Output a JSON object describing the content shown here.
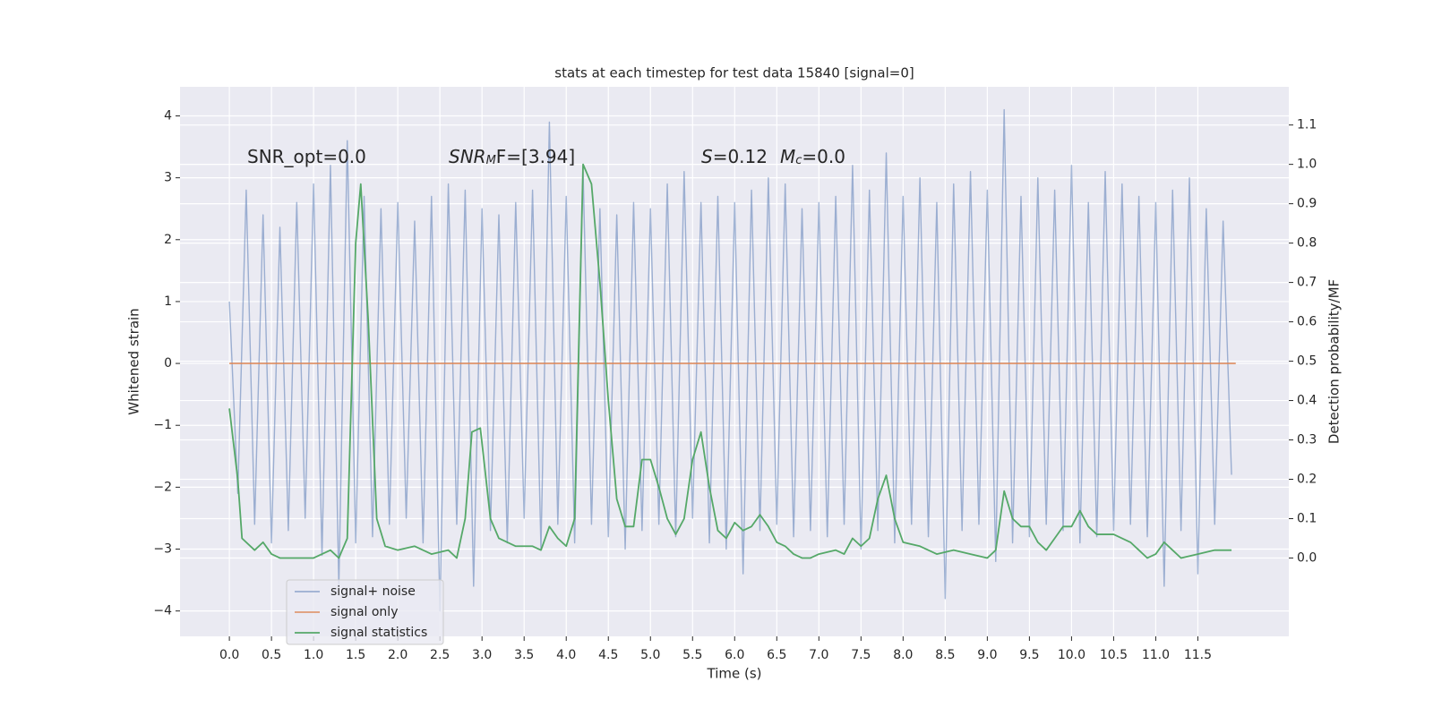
{
  "chart_data": {
    "type": "line",
    "title": "stats at each timestep for test data 15840 [signal=0]",
    "x_label": "Time (s)",
    "y_label": "Whitened strain",
    "y2_label": "Detection probability/MF",
    "annotations": [
      [
        "SNR_opt=0.0"
      ],
      [
        "SNR",
        "M",
        "F=[3.94]"
      ],
      [
        "S",
        "=0.12",
        "M",
        "c",
        "=0.0"
      ]
    ],
    "xlim": [
      -0.586,
      12.58
    ],
    "ylim": [
      -4.41,
      4.47
    ],
    "y2lim": [
      -0.199,
      1.197
    ],
    "xticks": [
      {
        "value": 0,
        "label": "0.0"
      },
      0.5,
      {
        "value": 1,
        "label": "1.0"
      },
      1.5,
      {
        "value": 2,
        "label": "2.0"
      },
      2.5,
      {
        "value": 3,
        "label": "3.0"
      },
      3.5,
      {
        "value": 4,
        "label": "4.0"
      },
      4.5,
      {
        "value": 5,
        "label": "5.0"
      },
      5.5,
      {
        "value": 6,
        "label": "6.0"
      },
      6.5,
      {
        "value": 7,
        "label": "7.0"
      },
      7.5,
      {
        "value": 8,
        "label": "8.0"
      },
      8.5,
      {
        "value": 9,
        "label": "9.0"
      },
      9.5,
      {
        "value": 10,
        "label": "10.0"
      },
      10.5,
      {
        "value": 11,
        "label": "11.0"
      },
      11.5
    ],
    "yticks": [
      {
        "value": -4,
        "label": "−4"
      },
      {
        "value": -3,
        "label": "−3"
      },
      {
        "value": -2,
        "label": "−2"
      },
      {
        "value": -1,
        "label": "−1"
      },
      0,
      1,
      2,
      3,
      4
    ],
    "y2ticks": [
      {
        "value": 0,
        "label": "0.0"
      },
      0.1,
      0.2,
      0.3,
      0.4,
      0.5,
      0.6,
      0.7,
      0.8,
      0.9,
      {
        "value": 1,
        "label": "1.0"
      },
      1.1
    ],
    "grid": true,
    "legend": "lower left",
    "series": [
      {
        "name": "signal+ noise",
        "color": "#4c72b0",
        "opacity": 0.5,
        "x": [
          0.0,
          0.1,
          0.2,
          0.3,
          0.4,
          0.5,
          0.6,
          0.7,
          0.8,
          0.9,
          1.0,
          1.1,
          1.2,
          1.3,
          1.4,
          1.5,
          1.6,
          1.7,
          1.8,
          1.9,
          2.0,
          2.1,
          2.2,
          2.3,
          2.4,
          2.5,
          2.6,
          2.7,
          2.8,
          2.9,
          3.0,
          3.1,
          3.2,
          3.3,
          3.4,
          3.5,
          3.6,
          3.7,
          3.8,
          3.9,
          4.0,
          4.1,
          4.2,
          4.3,
          4.4,
          4.5,
          4.6,
          4.7,
          4.8,
          4.9,
          5.0,
          5.1,
          5.2,
          5.3,
          5.4,
          5.5,
          5.6,
          5.7,
          5.8,
          5.9,
          6.0,
          6.1,
          6.2,
          6.3,
          6.4,
          6.5,
          6.6,
          6.7,
          6.8,
          6.9,
          7.0,
          7.1,
          7.2,
          7.3,
          7.4,
          7.5,
          7.6,
          7.7,
          7.8,
          7.9,
          8.0,
          8.1,
          8.2,
          8.3,
          8.4,
          8.5,
          8.6,
          8.7,
          8.8,
          8.9,
          9.0,
          9.1,
          9.2,
          9.3,
          9.4,
          9.5,
          9.6,
          9.7,
          9.8,
          9.9,
          10.0,
          10.1,
          10.2,
          10.3,
          10.4,
          10.5,
          10.6,
          10.7,
          10.8,
          10.9,
          11.0,
          11.1,
          11.2,
          11.3,
          11.4,
          11.5,
          11.6,
          11.7,
          11.8,
          11.9
        ],
        "values": [
          1.0,
          -2.1,
          2.8,
          -2.6,
          2.4,
          -2.9,
          2.2,
          -2.7,
          2.6,
          -2.5,
          2.9,
          -3.1,
          3.2,
          -3.6,
          3.6,
          -2.9,
          2.7,
          -2.8,
          2.5,
          -2.6,
          2.6,
          -2.5,
          2.3,
          -2.9,
          2.7,
          -4.0,
          2.9,
          -2.6,
          2.8,
          -3.6,
          2.5,
          -2.7,
          2.4,
          -2.9,
          2.6,
          -2.5,
          2.8,
          -3.0,
          3.9,
          -2.6,
          2.7,
          -2.9,
          3.1,
          -2.6,
          2.5,
          -2.8,
          2.4,
          -3.0,
          2.6,
          -2.7,
          2.5,
          -2.6,
          2.9,
          -2.8,
          3.1,
          -2.5,
          2.6,
          -2.9,
          2.7,
          -3.0,
          2.6,
          -3.4,
          2.8,
          -2.7,
          3.0,
          -2.6,
          2.9,
          -2.8,
          2.5,
          -2.7,
          2.6,
          -2.8,
          2.7,
          -2.6,
          3.2,
          -3.0,
          2.8,
          -2.7,
          3.4,
          -2.9,
          2.7,
          -2.6,
          3.0,
          -2.8,
          2.6,
          -3.8,
          2.9,
          -2.7,
          3.1,
          -2.6,
          2.8,
          -3.2,
          4.1,
          -2.9,
          2.7,
          -2.8,
          3.0,
          -2.6,
          2.8,
          -2.7,
          3.2,
          -2.9,
          2.6,
          -2.8,
          3.1,
          -2.7,
          2.9,
          -2.6,
          2.7,
          -2.8,
          2.6,
          -3.6,
          2.8,
          -2.7,
          3.0,
          -3.4,
          2.5,
          -2.6,
          2.3,
          -1.8
        ]
      },
      {
        "name": "signal only",
        "color": "#dd8452",
        "opacity": 0.8,
        "x": [
          0.0,
          11.95
        ],
        "values": [
          0,
          0
        ]
      },
      {
        "name": "signal statistics",
        "color": "#55a868",
        "opacity": 1,
        "axis": "y2",
        "x": [
          0,
          0.1,
          0.15,
          0.3,
          0.4,
          0.5,
          0.6,
          0.8,
          1.0,
          1.2,
          1.3,
          1.4,
          1.5,
          1.56,
          1.65,
          1.75,
          1.85,
          2.0,
          2.2,
          2.4,
          2.6,
          2.7,
          2.8,
          2.88,
          2.98,
          3.1,
          3.2,
          3.4,
          3.6,
          3.7,
          3.8,
          3.9,
          4.0,
          4.1,
          4.2,
          4.3,
          4.4,
          4.5,
          4.6,
          4.7,
          4.8,
          4.9,
          5.0,
          5.1,
          5.2,
          5.3,
          5.4,
          5.5,
          5.6,
          5.7,
          5.8,
          5.9,
          6.0,
          6.1,
          6.2,
          6.3,
          6.4,
          6.5,
          6.6,
          6.7,
          6.8,
          6.9,
          7.0,
          7.2,
          7.3,
          7.4,
          7.5,
          7.6,
          7.7,
          7.8,
          7.9,
          8.0,
          8.2,
          8.4,
          8.6,
          8.8,
          9.0,
          9.1,
          9.2,
          9.3,
          9.4,
          9.5,
          9.6,
          9.7,
          9.8,
          9.9,
          10.0,
          10.1,
          10.2,
          10.3,
          10.5,
          10.7,
          10.8,
          10.9,
          11.0,
          11.1,
          11.2,
          11.3,
          11.5,
          11.7,
          11.9
        ],
        "values": [
          0.38,
          0.2,
          0.05,
          0.02,
          0.04,
          0.01,
          0.0,
          0.0,
          0.0,
          0.02,
          0.0,
          0.05,
          0.8,
          0.95,
          0.6,
          0.1,
          0.03,
          0.02,
          0.03,
          0.01,
          0.02,
          0.0,
          0.1,
          0.32,
          0.33,
          0.1,
          0.05,
          0.03,
          0.03,
          0.02,
          0.08,
          0.05,
          0.03,
          0.1,
          1.0,
          0.95,
          0.7,
          0.4,
          0.15,
          0.08,
          0.08,
          0.25,
          0.25,
          0.18,
          0.1,
          0.06,
          0.1,
          0.25,
          0.32,
          0.18,
          0.07,
          0.05,
          0.09,
          0.07,
          0.08,
          0.11,
          0.08,
          0.04,
          0.03,
          0.01,
          0.0,
          0.0,
          0.01,
          0.02,
          0.01,
          0.05,
          0.03,
          0.05,
          0.15,
          0.21,
          0.1,
          0.04,
          0.03,
          0.01,
          0.02,
          0.01,
          0.0,
          0.02,
          0.17,
          0.1,
          0.08,
          0.08,
          0.04,
          0.02,
          0.05,
          0.08,
          0.08,
          0.12,
          0.08,
          0.06,
          0.06,
          0.04,
          0.02,
          0.0,
          0.01,
          0.04,
          0.02,
          0.0,
          0.01,
          0.02,
          0.02
        ]
      }
    ]
  }
}
